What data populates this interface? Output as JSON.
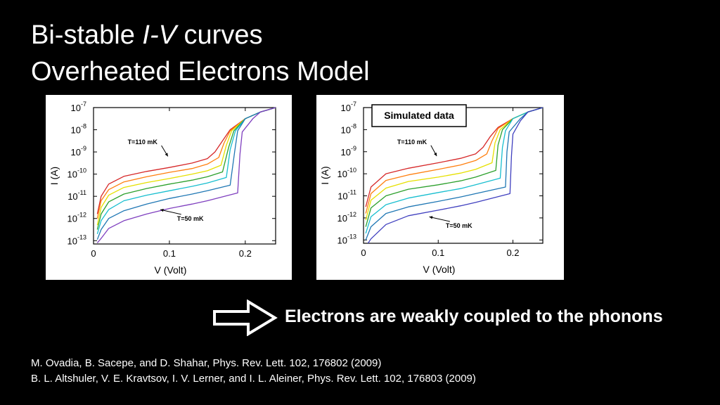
{
  "slide": {
    "title_part1": "Bi-stable ",
    "title_italic": "I-V",
    "title_part2": " curves",
    "title_line2": "Overheated Electrons Model",
    "conclusion": "Electrons are weakly coupled to the phonons",
    "references": [
      "M. Ovadia, B. Sacepe, and D. Shahar, Phys. Rev. Lett. 102, 176802 (2009)",
      "B. L. Altshuler, V. E. Kravtsov, I. V. Lerner, and I. L. Aleiner, Phys. Rev. Lett. 102, 176803 (2009)"
    ],
    "arrow_icon": "outline-right-arrow-icon"
  },
  "chart_data": [
    {
      "type": "line",
      "title": "",
      "xlabel": "V (Volt)",
      "ylabel": "I (A)",
      "xlim": [
        0,
        0.24
      ],
      "ylim": [
        -13.15,
        -7.0
      ],
      "y_scale": "log",
      "x_ticks": [
        "0",
        "0.1",
        "0.2"
      ],
      "x_tick_values": [
        0,
        0.1,
        0.2
      ],
      "y_ticks": [
        {
          "base": "10",
          "exp": "-7",
          "value": -7
        },
        {
          "base": "10",
          "exp": "-8",
          "value": -8
        },
        {
          "base": "10",
          "exp": "-9",
          "value": -9
        },
        {
          "base": "10",
          "exp": "-10",
          "value": -10
        },
        {
          "base": "10",
          "exp": "-11",
          "value": -11
        },
        {
          "base": "10",
          "exp": "-12",
          "value": -12
        },
        {
          "base": "10",
          "exp": "-13",
          "value": -13
        }
      ],
      "annotations": [
        {
          "text": "T=110 mK",
          "x": 0.045,
          "y": -8.65,
          "arrow_to": [
            0.098,
            -9.2
          ]
        },
        {
          "text": "T=50 mK",
          "x": 0.11,
          "y": -12.1,
          "arrow_to": [
            0.088,
            -11.6
          ]
        }
      ],
      "series": [
        {
          "color": "#d62728",
          "values": [
            [
              0.005,
              -11.8
            ],
            [
              0.01,
              -11.0
            ],
            [
              0.02,
              -10.45
            ],
            [
              0.04,
              -10.1
            ],
            [
              0.07,
              -9.88
            ],
            [
              0.1,
              -9.7
            ],
            [
              0.13,
              -9.5
            ],
            [
              0.15,
              -9.3
            ],
            [
              0.16,
              -9.0
            ],
            [
              0.17,
              -8.5
            ],
            [
              0.18,
              -8.0
            ],
            [
              0.2,
              -7.5
            ],
            [
              0.22,
              -7.2
            ],
            [
              0.24,
              -7.0
            ]
          ]
        },
        {
          "color": "#ff7f0e",
          "values": [
            [
              0.005,
              -12.0
            ],
            [
              0.01,
              -11.2
            ],
            [
              0.02,
              -10.7
            ],
            [
              0.04,
              -10.35
            ],
            [
              0.07,
              -10.12
            ],
            [
              0.1,
              -9.92
            ],
            [
              0.13,
              -9.75
            ],
            [
              0.15,
              -9.55
            ],
            [
              0.165,
              -9.25
            ],
            [
              0.172,
              -8.6
            ],
            [
              0.18,
              -8.05
            ],
            [
              0.2,
              -7.5
            ],
            [
              0.22,
              -7.2
            ],
            [
              0.24,
              -7.0
            ]
          ]
        },
        {
          "color": "#e6e000",
          "values": [
            [
              0.005,
              -12.3
            ],
            [
              0.01,
              -11.5
            ],
            [
              0.02,
              -10.95
            ],
            [
              0.04,
              -10.6
            ],
            [
              0.07,
              -10.38
            ],
            [
              0.1,
              -10.2
            ],
            [
              0.13,
              -10.0
            ],
            [
              0.15,
              -9.85
            ],
            [
              0.168,
              -9.6
            ],
            [
              0.175,
              -8.7
            ],
            [
              0.182,
              -8.05
            ],
            [
              0.2,
              -7.5
            ],
            [
              0.22,
              -7.2
            ],
            [
              0.24,
              -7.0
            ]
          ]
        },
        {
          "color": "#2ca02c",
          "values": [
            [
              0.005,
              -12.5
            ],
            [
              0.01,
              -11.8
            ],
            [
              0.02,
              -11.25
            ],
            [
              0.04,
              -10.9
            ],
            [
              0.07,
              -10.65
            ],
            [
              0.1,
              -10.45
            ],
            [
              0.13,
              -10.27
            ],
            [
              0.15,
              -10.12
            ],
            [
              0.17,
              -9.9
            ],
            [
              0.178,
              -8.8
            ],
            [
              0.185,
              -8.05
            ],
            [
              0.2,
              -7.5
            ],
            [
              0.22,
              -7.2
            ],
            [
              0.24,
              -7.0
            ]
          ]
        },
        {
          "color": "#17becf",
          "values": [
            [
              0.005,
              -12.7
            ],
            [
              0.01,
              -12.1
            ],
            [
              0.02,
              -11.6
            ],
            [
              0.04,
              -11.2
            ],
            [
              0.07,
              -10.95
            ],
            [
              0.1,
              -10.75
            ],
            [
              0.13,
              -10.55
            ],
            [
              0.15,
              -10.4
            ],
            [
              0.175,
              -10.15
            ],
            [
              0.18,
              -8.9
            ],
            [
              0.187,
              -8.05
            ],
            [
              0.2,
              -7.5
            ],
            [
              0.22,
              -7.2
            ],
            [
              0.24,
              -7.0
            ]
          ]
        },
        {
          "color": "#1f77b4",
          "values": [
            [
              0.005,
              -12.95
            ],
            [
              0.01,
              -12.5
            ],
            [
              0.02,
              -12.0
            ],
            [
              0.04,
              -11.65
            ],
            [
              0.07,
              -11.35
            ],
            [
              0.1,
              -11.1
            ],
            [
              0.13,
              -10.9
            ],
            [
              0.15,
              -10.75
            ],
            [
              0.18,
              -10.5
            ],
            [
              0.186,
              -9.0
            ],
            [
              0.19,
              -8.05
            ],
            [
              0.2,
              -7.5
            ],
            [
              0.22,
              -7.2
            ],
            [
              0.24,
              -7.0
            ]
          ]
        },
        {
          "color": "#7f3fbf",
          "values": [
            [
              0.005,
              -13.1
            ],
            [
              0.01,
              -12.9
            ],
            [
              0.02,
              -12.45
            ],
            [
              0.04,
              -12.1
            ],
            [
              0.07,
              -11.8
            ],
            [
              0.1,
              -11.55
            ],
            [
              0.13,
              -11.35
            ],
            [
              0.15,
              -11.2
            ],
            [
              0.19,
              -10.85
            ],
            [
              0.193,
              -9.1
            ],
            [
              0.196,
              -8.1
            ],
            [
              0.21,
              -7.5
            ],
            [
              0.22,
              -7.2
            ],
            [
              0.24,
              -7.0
            ]
          ]
        }
      ]
    },
    {
      "type": "line",
      "title": "",
      "xlabel": "V (Volt)",
      "ylabel": "I (A)",
      "xlim": [
        0,
        0.24
      ],
      "ylim": [
        -13.15,
        -7.0
      ],
      "y_scale": "log",
      "x_ticks": [
        "0",
        "0.1",
        "0.2"
      ],
      "x_tick_values": [
        0,
        0.1,
        0.2
      ],
      "y_ticks": [
        {
          "base": "10",
          "exp": "-7",
          "value": -7
        },
        {
          "base": "10",
          "exp": "-8",
          "value": -8
        },
        {
          "base": "10",
          "exp": "-9",
          "value": -9
        },
        {
          "base": "10",
          "exp": "-10",
          "value": -10
        },
        {
          "base": "10",
          "exp": "-11",
          "value": -11
        },
        {
          "base": "10",
          "exp": "-12",
          "value": -12
        },
        {
          "base": "10",
          "exp": "-13",
          "value": -13
        }
      ],
      "legend_box": "Simulated data",
      "annotations": [
        {
          "text": "T=110 mK",
          "x": 0.045,
          "y": -8.65,
          "arrow_to": [
            0.098,
            -9.2
          ]
        },
        {
          "text": "T=50 mK",
          "x": 0.11,
          "y": -12.45,
          "arrow_to": [
            0.088,
            -11.95
          ]
        }
      ],
      "series": [
        {
          "color": "#d62728",
          "values": [
            [
              0.003,
              -11.5
            ],
            [
              0.01,
              -10.6
            ],
            [
              0.03,
              -10.0
            ],
            [
              0.06,
              -9.75
            ],
            [
              0.1,
              -9.5
            ],
            [
              0.13,
              -9.3
            ],
            [
              0.15,
              -9.1
            ],
            [
              0.16,
              -8.8
            ],
            [
              0.17,
              -8.3
            ],
            [
              0.18,
              -7.9
            ],
            [
              0.2,
              -7.5
            ],
            [
              0.22,
              -7.2
            ],
            [
              0.24,
              -7.0
            ]
          ]
        },
        {
          "color": "#ff7f0e",
          "values": [
            [
              0.003,
              -11.8
            ],
            [
              0.01,
              -10.9
            ],
            [
              0.03,
              -10.3
            ],
            [
              0.06,
              -10.05
            ],
            [
              0.1,
              -9.8
            ],
            [
              0.13,
              -9.6
            ],
            [
              0.15,
              -9.4
            ],
            [
              0.165,
              -9.1
            ],
            [
              0.172,
              -8.5
            ],
            [
              0.18,
              -7.95
            ],
            [
              0.2,
              -7.5
            ],
            [
              0.22,
              -7.2
            ],
            [
              0.24,
              -7.0
            ]
          ]
        },
        {
          "color": "#e6e000",
          "values": [
            [
              0.003,
              -12.1
            ],
            [
              0.01,
              -11.2
            ],
            [
              0.03,
              -10.65
            ],
            [
              0.06,
              -10.35
            ],
            [
              0.1,
              -10.15
            ],
            [
              0.13,
              -9.97
            ],
            [
              0.15,
              -9.8
            ],
            [
              0.172,
              -9.5
            ],
            [
              0.176,
              -8.6
            ],
            [
              0.183,
              -8.0
            ],
            [
              0.2,
              -7.5
            ],
            [
              0.22,
              -7.2
            ],
            [
              0.24,
              -7.0
            ]
          ]
        },
        {
          "color": "#2ca02c",
          "values": [
            [
              0.003,
              -12.4
            ],
            [
              0.01,
              -11.55
            ],
            [
              0.03,
              -11.0
            ],
            [
              0.06,
              -10.7
            ],
            [
              0.1,
              -10.5
            ],
            [
              0.13,
              -10.32
            ],
            [
              0.15,
              -10.15
            ],
            [
              0.177,
              -9.85
            ],
            [
              0.18,
              -8.7
            ],
            [
              0.186,
              -8.0
            ],
            [
              0.2,
              -7.5
            ],
            [
              0.22,
              -7.2
            ],
            [
              0.24,
              -7.0
            ]
          ]
        },
        {
          "color": "#17becf",
          "values": [
            [
              0.003,
              -12.7
            ],
            [
              0.01,
              -11.95
            ],
            [
              0.03,
              -11.4
            ],
            [
              0.06,
              -11.1
            ],
            [
              0.1,
              -10.85
            ],
            [
              0.13,
              -10.67
            ],
            [
              0.15,
              -10.5
            ],
            [
              0.183,
              -10.2
            ],
            [
              0.186,
              -8.8
            ],
            [
              0.19,
              -8.05
            ],
            [
              0.2,
              -7.5
            ],
            [
              0.22,
              -7.2
            ],
            [
              0.24,
              -7.0
            ]
          ]
        },
        {
          "color": "#1f77b4",
          "values": [
            [
              0.003,
              -13.0
            ],
            [
              0.01,
              -12.4
            ],
            [
              0.03,
              -11.8
            ],
            [
              0.06,
              -11.5
            ],
            [
              0.1,
              -11.25
            ],
            [
              0.13,
              -11.05
            ],
            [
              0.15,
              -10.9
            ],
            [
              0.19,
              -10.6
            ],
            [
              0.192,
              -9.0
            ],
            [
              0.195,
              -8.1
            ],
            [
              0.21,
              -7.5
            ],
            [
              0.22,
              -7.2
            ],
            [
              0.24,
              -7.0
            ]
          ]
        },
        {
          "color": "#3f3fbf",
          "values": [
            [
              0.006,
              -13.15
            ],
            [
              0.01,
              -12.95
            ],
            [
              0.03,
              -12.3
            ],
            [
              0.06,
              -11.9
            ],
            [
              0.1,
              -11.65
            ],
            [
              0.13,
              -11.45
            ],
            [
              0.15,
              -11.3
            ],
            [
              0.196,
              -10.9
            ],
            [
              0.198,
              -9.2
            ],
            [
              0.2,
              -8.2
            ],
            [
              0.21,
              -7.6
            ],
            [
              0.22,
              -7.2
            ],
            [
              0.24,
              -7.0
            ]
          ]
        }
      ]
    }
  ]
}
